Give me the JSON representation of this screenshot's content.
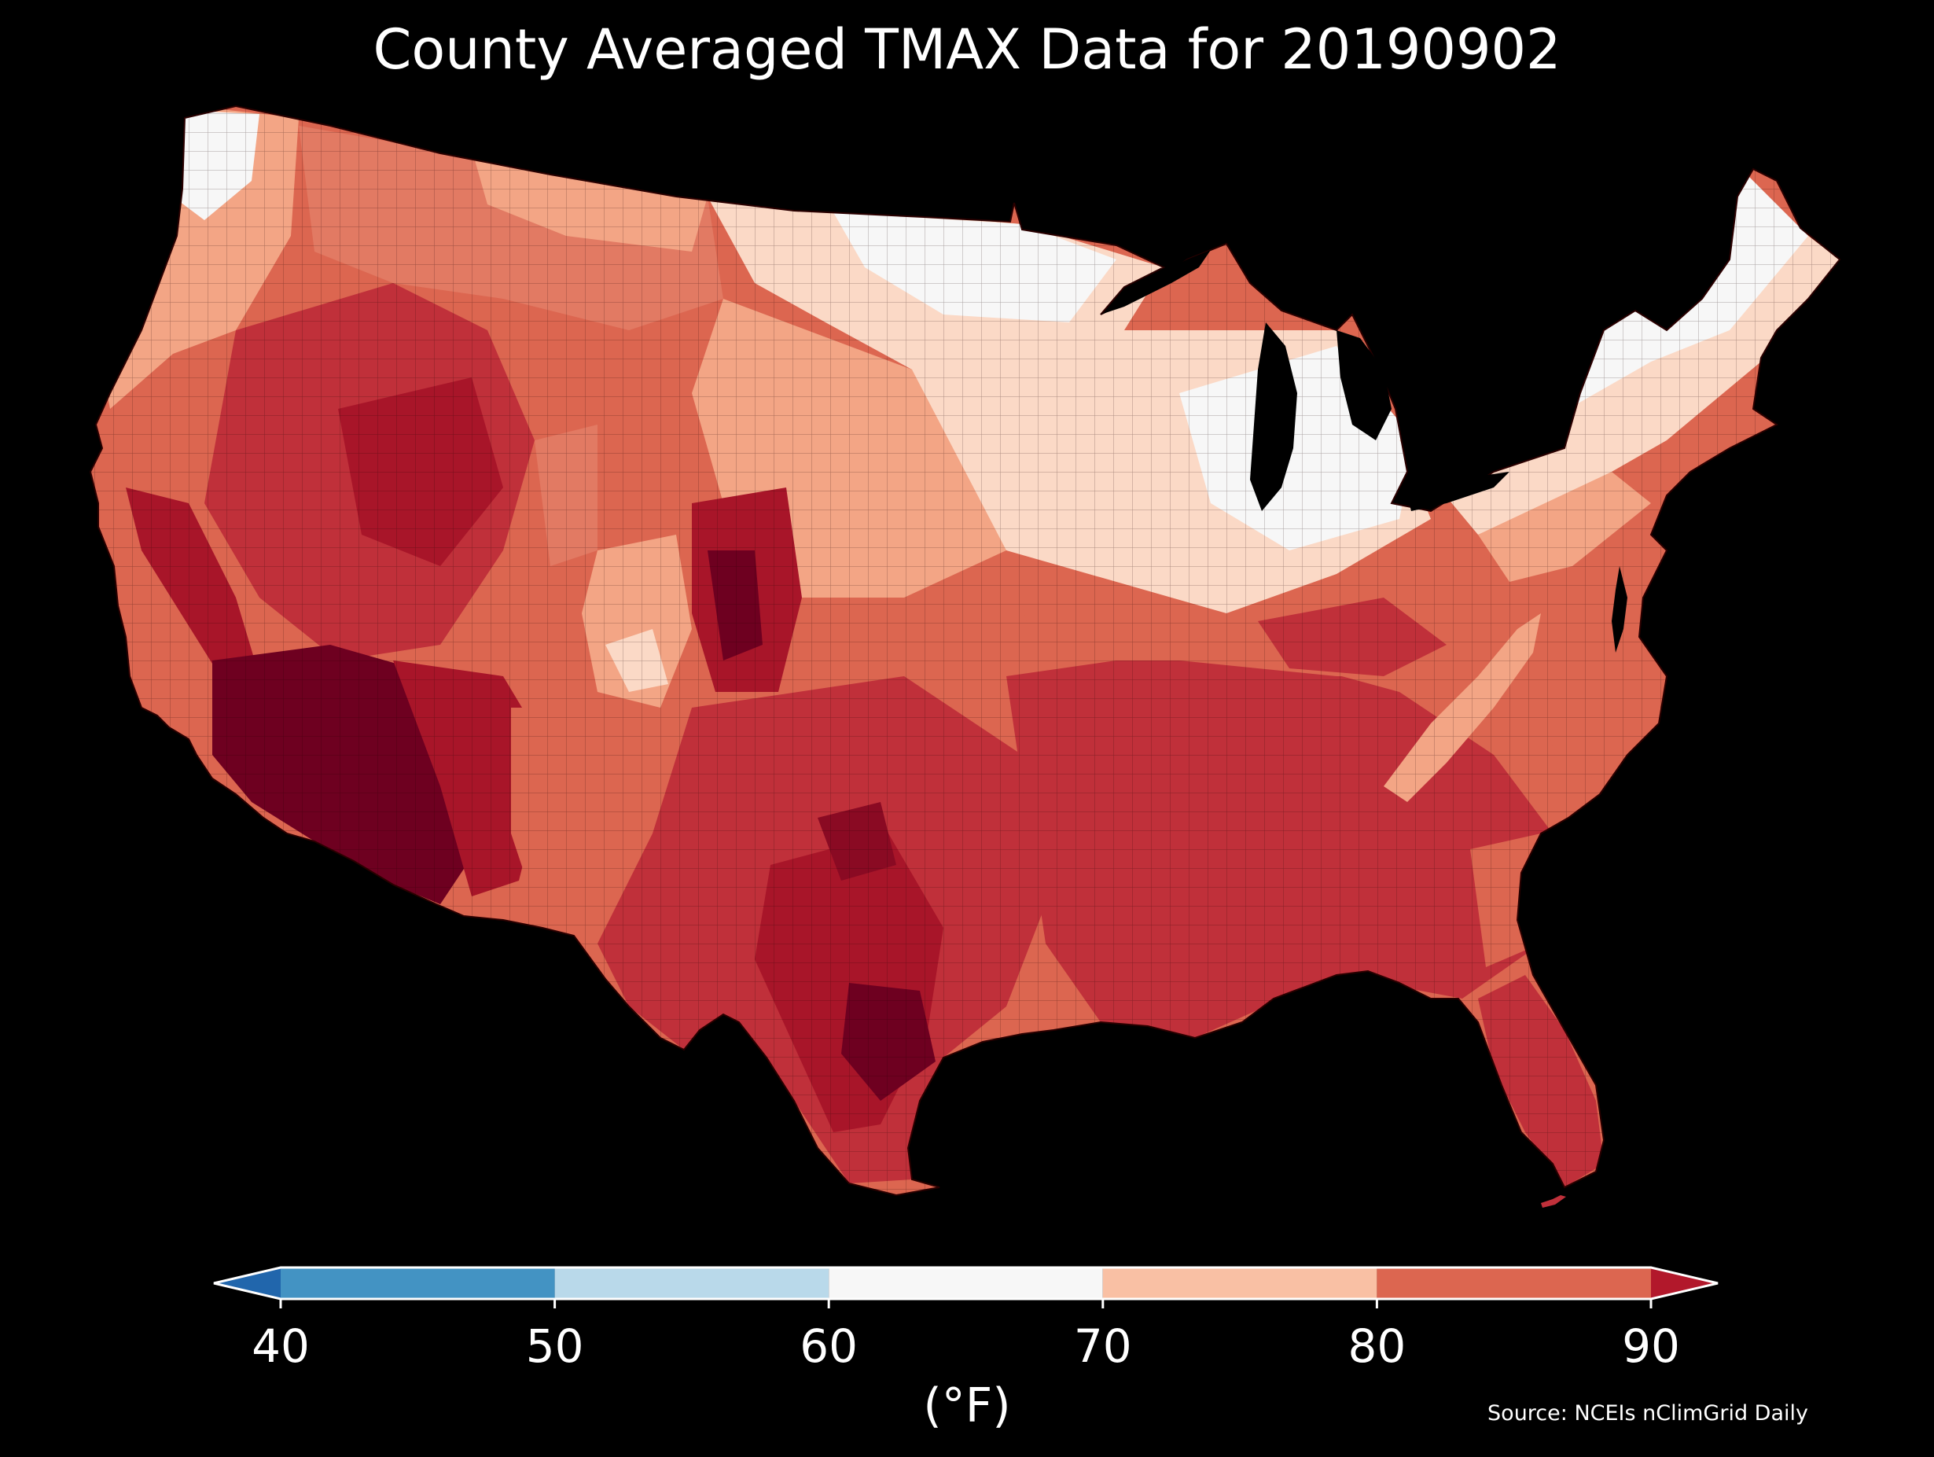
{
  "title": "County Averaged TMAX Data for 20190902",
  "colorbar": {
    "label": "(°F)",
    "ticks": [
      "40",
      "50",
      "60",
      "70",
      "80",
      "90"
    ],
    "bins": [
      {
        "from": 40,
        "to": 50,
        "color": "#4393c3"
      },
      {
        "from": 50,
        "to": 60,
        "color": "#b9d9ea"
      },
      {
        "from": 60,
        "to": 70,
        "color": "#f7f7f7"
      },
      {
        "from": 70,
        "to": 80,
        "color": "#f9c0a4"
      },
      {
        "from": 80,
        "to": 90,
        "color": "#dc6650"
      }
    ],
    "under_color": "#2166ac",
    "over_color": "#b2182b",
    "extend": "both"
  },
  "source": "Source: NCEIs nClimGrid Daily",
  "palette": {
    "background": "#000000",
    "white_60_70": "#f7f7f7",
    "light_70_75": "#fbd9c6",
    "salmon_75_80": "#f3a585",
    "coral_80_85": "#dc6650",
    "red_85_88": "#c0303a",
    "crimson_88_90": "#a81529",
    "darkred_over_90": "#6e0020"
  }
}
